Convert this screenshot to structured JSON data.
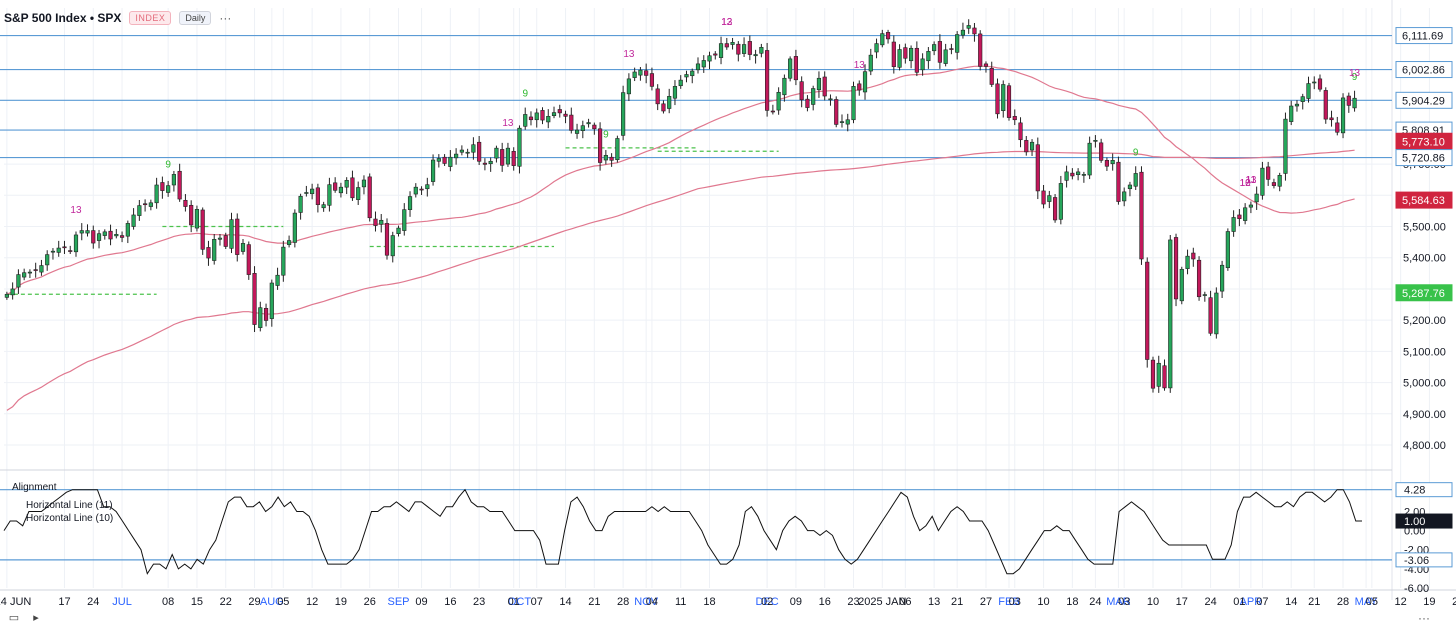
{
  "header": {
    "title": "S&P 500 Index • SPX",
    "badge": "INDEX",
    "interval": "Daily",
    "more": "···"
  },
  "footer": {
    "more": "···"
  },
  "colors": {
    "up": "#26a65b",
    "down": "#c2185b",
    "ma": "#e0788f",
    "hline": "#5b9bd5",
    "seq_up": "#2eb82e",
    "seq_down": "#c0279b",
    "grid": "#eef1f6",
    "osc": "#111111"
  },
  "chart_data": [
    {
      "type": "candlestick",
      "title": "S&P 500 Index • SPX",
      "interval": "Daily",
      "ylim": [
        4720,
        6200
      ],
      "x_tick_labels": [
        {
          "label": "2024 JUN",
          "index": 0
        },
        {
          "label": "17",
          "index": 10
        },
        {
          "label": "24",
          "index": 15
        },
        {
          "label": "JUL",
          "index": 20
        },
        {
          "label": "08",
          "index": 28
        },
        {
          "label": "15",
          "index": 33
        },
        {
          "label": "22",
          "index": 38
        },
        {
          "label": "29",
          "index": 43
        },
        {
          "label": "AUG",
          "index": 46
        },
        {
          "label": "05",
          "index": 48
        },
        {
          "label": "12",
          "index": 53
        },
        {
          "label": "19",
          "index": 58
        },
        {
          "label": "26",
          "index": 63
        },
        {
          "label": "SEP",
          "index": 68
        },
        {
          "label": "09",
          "index": 72
        },
        {
          "label": "16",
          "index": 77
        },
        {
          "label": "23",
          "index": 82
        },
        {
          "label": "OCT",
          "index": 89
        },
        {
          "label": "01",
          "index": 88
        },
        {
          "label": "07",
          "index": 92
        },
        {
          "label": "14",
          "index": 97
        },
        {
          "label": "21",
          "index": 102
        },
        {
          "label": "28",
          "index": 107
        },
        {
          "label": "NOV",
          "index": 111
        },
        {
          "label": "04",
          "index": 112
        },
        {
          "label": "11",
          "index": 117
        },
        {
          "label": "18",
          "index": 122
        },
        {
          "label": "DEC",
          "index": 132
        },
        {
          "label": "02",
          "index": 132
        },
        {
          "label": "09",
          "index": 137
        },
        {
          "label": "16",
          "index": 142
        },
        {
          "label": "23",
          "index": 147
        },
        {
          "label": "2025 JAN",
          "index": 152
        },
        {
          "label": "06",
          "index": 156
        },
        {
          "label": "13",
          "index": 161
        },
        {
          "label": "21",
          "index": 165
        },
        {
          "label": "27",
          "index": 170
        },
        {
          "label": "FEB",
          "index": 174
        },
        {
          "label": "03",
          "index": 175
        },
        {
          "label": "10",
          "index": 180
        },
        {
          "label": "18",
          "index": 185
        },
        {
          "label": "24",
          "index": 189
        },
        {
          "label": "MAR",
          "index": 193
        },
        {
          "label": "03",
          "index": 194
        },
        {
          "label": "10",
          "index": 199
        },
        {
          "label": "17",
          "index": 204
        },
        {
          "label": "24",
          "index": 209
        },
        {
          "label": "APR",
          "index": 216
        },
        {
          "label": "01",
          "index": 214
        },
        {
          "label": "07",
          "index": 218
        },
        {
          "label": "14",
          "index": 223
        },
        {
          "label": "21",
          "index": 227
        },
        {
          "label": "28",
          "index": 232
        },
        {
          "label": "MAY",
          "index": 236
        },
        {
          "label": "05",
          "index": 237
        },
        {
          "label": "12",
          "index": 242
        },
        {
          "label": "19",
          "index": 247
        },
        {
          "label": "26",
          "index": 252
        },
        {
          "label": "JUN",
          "index": 256
        },
        {
          "label": "02",
          "index": 257
        }
      ],
      "y_ticks": [
        4800,
        4900,
        5000,
        5100,
        5200,
        5300,
        5400,
        5500,
        5600,
        5700
      ],
      "price_labels": [
        {
          "value": "6,111.69",
          "price": 6111.69,
          "style": "line"
        },
        {
          "value": "6,002.86",
          "price": 6002.86,
          "style": "line"
        },
        {
          "value": "5,904.29",
          "price": 5904.29,
          "style": "line"
        },
        {
          "value": "5,808.91",
          "price": 5808.91,
          "style": "line"
        },
        {
          "value": "5,773.10",
          "price": 5773.1,
          "style": "red"
        },
        {
          "value": "5,720.86",
          "price": 5720.86,
          "style": "line"
        },
        {
          "value": "5,584.63",
          "price": 5584.63,
          "style": "red"
        },
        {
          "value": "5,287.76",
          "price": 5287.76,
          "style": "green"
        }
      ],
      "horizontal_lines": [
        6111.69,
        6002.86,
        5904.29,
        5808.91,
        5720.86
      ],
      "close_series_daily": [
        5283,
        5300,
        5346,
        5352,
        5354,
        5360,
        5375,
        5410,
        5421,
        5431,
        5433,
        5421,
        5473,
        5487,
        5487,
        5447,
        5477,
        5483,
        5460,
        5475,
        5465,
        5510,
        5537,
        5567,
        5572,
        5576,
        5633,
        5615,
        5631,
        5667,
        5588,
        5564,
        5505,
        5555,
        5427,
        5399,
        5459,
        5463,
        5436,
        5522,
        5410,
        5446,
        5346,
        5186,
        5240,
        5199,
        5319,
        5344,
        5434,
        5455,
        5543,
        5597,
        5609,
        5620,
        5570,
        5570,
        5634,
        5616,
        5626,
        5648,
        5592,
        5625,
        5649,
        5528,
        5503,
        5520,
        5408,
        5471,
        5495,
        5554,
        5596,
        5626,
        5619,
        5634,
        5713,
        5718,
        5702,
        5722,
        5732,
        5745,
        5738,
        5762,
        5709,
        5699,
        5709,
        5751,
        5696,
        5751,
        5695,
        5815,
        5859,
        5842,
        5864,
        5841,
        5853,
        5865,
        5864,
        5853,
        5808,
        5809,
        5823,
        5833,
        5813,
        5705,
        5728,
        5712,
        5782,
        5929,
        5973,
        5995,
        6001,
        5984,
        5949,
        5893,
        5870,
        5917,
        5949,
        5969,
        5987,
        5998,
        6021,
        6032,
        6047,
        6049,
        6086,
        6075,
        6090,
        6052,
        6083,
        6051,
        6051,
        6074,
        5872,
        5867,
        5930,
        5975,
        6037,
        5970,
        5906,
        5881,
        5942,
        5975,
        5918,
        5909,
        5827,
        5836,
        5842,
        5949,
        5937,
        5996,
        6049,
        6086,
        6118,
        6101,
        6012,
        6067,
        6039,
        6071,
        5994,
        6037,
        6061,
        6083,
        6026,
        6066,
        6068,
        6115,
        6129,
        6144,
        6117,
        6013,
        6013,
        5955,
        5861,
        5955,
        5849,
        5842,
        5778,
        5739,
        5770,
        5614,
        5572,
        5599,
        5521,
        5638,
        5675,
        5662,
        5675,
        5667,
        5767,
        5776,
        5712,
        5693,
        5712,
        5580,
        5611,
        5633,
        5670,
        5396,
        5074,
        4982,
        5062,
        4983,
        5457,
        5268,
        5363,
        5405,
        5396,
        5275,
        5282,
        5158,
        5287,
        5376,
        5484,
        5529,
        5525,
        5560,
        5569,
        5604,
        5687,
        5651,
        5631,
        5664,
        5844,
        5886,
        5892,
        5916,
        5958,
        5963,
        5940,
        5844,
        5842,
        5802,
        5912,
        5888,
        5911
      ],
      "ma_fast_description": "fast moving average (pink)",
      "ma_slow_description": "slow moving average (pink)",
      "sequential_counts": [
        "13",
        "9",
        "13",
        "9",
        "12",
        "13",
        "13",
        "9",
        "9",
        "13",
        "10",
        "11",
        "12",
        "13",
        "9",
        "13"
      ]
    },
    {
      "type": "line",
      "title": "Alignment",
      "legend": [
        "Horizontal Line (11)",
        "Horizontal Line (10)"
      ],
      "ylim": [
        -6.0,
        5.5
      ],
      "y_ticks": [
        "2.00",
        "0.00",
        "-2.00",
        "-4.00",
        "-6.00"
      ],
      "value_labels": [
        {
          "value": "4.28",
          "y": 4.28,
          "style": "line"
        },
        {
          "value": "1.00",
          "y": 1.0,
          "style": "dark"
        },
        {
          "value": "-3.06",
          "y": -3.06,
          "style": "line"
        }
      ],
      "horizontal_lines": [
        4.28,
        -3.06
      ],
      "values": [
        0,
        1,
        1,
        0.5,
        2,
        2,
        2,
        2.5,
        3,
        3.5,
        4,
        4.28,
        4.28,
        4.28,
        4.28,
        4.28,
        2.5,
        2.5,
        2,
        1,
        0,
        -1,
        -2,
        -4.5,
        -3.5,
        -3.5,
        -4,
        -2.5,
        -4,
        -3.5,
        -4,
        -3,
        -3.5,
        -2,
        -1,
        1,
        3,
        3.5,
        3.5,
        2.5,
        2.5,
        3,
        2,
        2.5,
        3.5,
        2.5,
        3,
        2,
        2,
        1.5,
        0,
        -2,
        -3.5,
        -3.5,
        -3.5,
        -3.5,
        -3,
        -2,
        0,
        2,
        2,
        2.5,
        2.5,
        3,
        2.5,
        2,
        3,
        3,
        2.5,
        2,
        1.5,
        2.5,
        2.5,
        3.5,
        4.28,
        3,
        2.5,
        2.5,
        2,
        2,
        2,
        1,
        0,
        0,
        0,
        0,
        -1,
        -3.5,
        -3.5,
        -3.5,
        0,
        3,
        3.5,
        2.5,
        1,
        0,
        0,
        1.5,
        2,
        2,
        2,
        2,
        2,
        2,
        2.5,
        2,
        2.5,
        2,
        2,
        2,
        2,
        1,
        0,
        -1.5,
        -2.5,
        -3.5,
        -3.5,
        -3,
        -1.5,
        2,
        2.5,
        1.5,
        0,
        -1,
        -2,
        0,
        1,
        1.5,
        1,
        0,
        0,
        -0.5,
        0,
        -0.5,
        -2,
        -3,
        -3.5,
        -3,
        -2,
        -1,
        0,
        1,
        2,
        3,
        4,
        3.5,
        1.5,
        0,
        0.5,
        1.5,
        0,
        1,
        2,
        2.5,
        2,
        1,
        1,
        1,
        0,
        -1.5,
        -3,
        -4.5,
        -4.5,
        -4,
        -3,
        -2,
        -1,
        0,
        0,
        0.5,
        0,
        0,
        -1,
        -2,
        -3,
        -3.5,
        -3.5,
        -3.5,
        -3.5,
        2,
        2.5,
        3,
        2.5,
        2,
        1,
        0,
        -1,
        -1.5,
        -1.5,
        -1.5,
        -1.5,
        -1.5,
        -1.5,
        -1.5,
        -3,
        -3,
        -3,
        -1.5,
        2,
        3.5,
        3.5,
        4,
        3.5,
        3,
        2.5,
        2.5,
        3,
        2.5,
        3.5,
        4,
        4,
        3.5,
        3,
        3.5,
        4.28,
        4.28,
        3,
        1,
        1
      ]
    }
  ],
  "bottom_axis": {
    "labels": [
      "2024 JUN",
      "17",
      "24",
      "JUL",
      "08",
      "15",
      "22",
      "29",
      "AUG",
      "05",
      "12",
      "19",
      "26",
      "SEP",
      "09",
      "16",
      "23",
      "OCT",
      "01",
      "07",
      "14",
      "21",
      "28",
      "NOV",
      "04",
      "11",
      "18",
      "DEC",
      "02",
      "09",
      "16",
      "23",
      "2025 JAN",
      "06",
      "13",
      "21",
      "27",
      "FEB",
      "03",
      "10",
      "18",
      "24",
      "MAR",
      "03",
      "10",
      "17",
      "24",
      "APR",
      "01",
      "07",
      "14",
      "21",
      "28",
      "MAY",
      "05",
      "12",
      "19",
      "26",
      "JUN",
      "02"
    ]
  }
}
